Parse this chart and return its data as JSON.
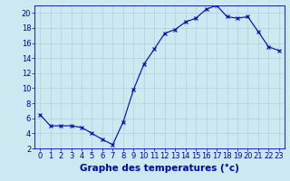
{
  "hours": [
    0,
    1,
    2,
    3,
    4,
    5,
    6,
    7,
    8,
    9,
    10,
    11,
    12,
    13,
    14,
    15,
    16,
    17,
    18,
    19,
    20,
    21,
    22,
    23
  ],
  "temperatures": [
    6.5,
    5.0,
    5.0,
    5.0,
    4.8,
    4.0,
    3.2,
    2.5,
    5.5,
    9.8,
    13.2,
    15.2,
    17.3,
    17.8,
    18.8,
    19.3,
    20.5,
    21.0,
    19.5,
    19.3,
    19.5,
    17.5,
    15.5,
    15.0
  ],
  "line_color": "#0000bb",
  "marker": "x",
  "marker_size": 3,
  "bg_color": "#cce8f0",
  "grid_color": "#b0cfd8",
  "xlabel": "Graphe des temperatures (°c)",
  "xlabel_color": "#0000bb",
  "ylim": [
    2,
    21
  ],
  "xlim_min": -0.5,
  "xlim_max": 23.5,
  "yticks": [
    2,
    4,
    6,
    8,
    10,
    12,
    14,
    16,
    18,
    20
  ],
  "xtick_labels": [
    "0",
    "1",
    "2",
    "3",
    "4",
    "5",
    "6",
    "7",
    "8",
    "9",
    "10",
    "11",
    "12",
    "13",
    "14",
    "15",
    "16",
    "17",
    "18",
    "19",
    "20",
    "21",
    "22",
    "23"
  ],
  "tick_color": "#0000bb",
  "tick_fontsize": 6,
  "xlabel_fontsize": 7.5,
  "linewidth": 0.8,
  "marker_edge_width": 0.8
}
